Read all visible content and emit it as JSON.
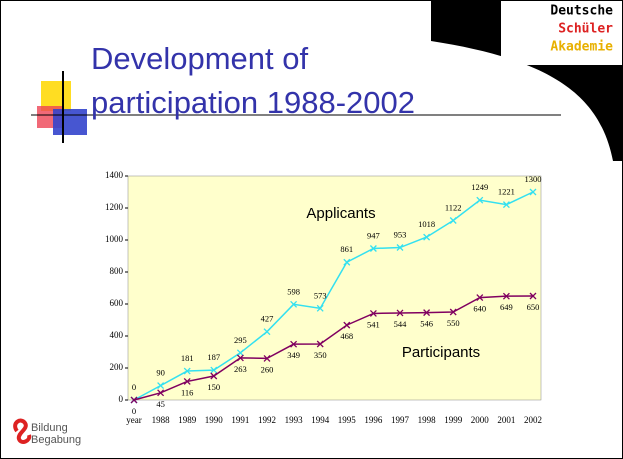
{
  "slide": {
    "title": "Development of participation 1988-2002",
    "logo": [
      "Deutsche",
      "Schüler",
      "Akademie"
    ],
    "footer_logo": [
      "Bildung",
      "Begabung"
    ]
  },
  "chart_data": {
    "type": "line",
    "categories": [
      "year",
      "1988",
      "1989",
      "1990",
      "1991",
      "1992",
      "1993",
      "1994",
      "1995",
      "1996",
      "1997",
      "1998",
      "1999",
      "2000",
      "2001",
      "2002"
    ],
    "series": [
      {
        "name": "Applicants",
        "color": "#33e0f0",
        "values": [
          0,
          90,
          181,
          187,
          295,
          427,
          598,
          573,
          861,
          947,
          953,
          1018,
          1122,
          1249,
          1221,
          1300
        ]
      },
      {
        "name": "Participants",
        "color": "#800060",
        "values": [
          0,
          45,
          116,
          150,
          263,
          260,
          349,
          350,
          468,
          541,
          544,
          546,
          550,
          640,
          649,
          650
        ]
      }
    ],
    "ylim": [
      0,
      1400
    ],
    "yticks": [
      0,
      200,
      400,
      600,
      800,
      1000,
      1200,
      1400
    ],
    "plot_background": "#ffffcc"
  }
}
